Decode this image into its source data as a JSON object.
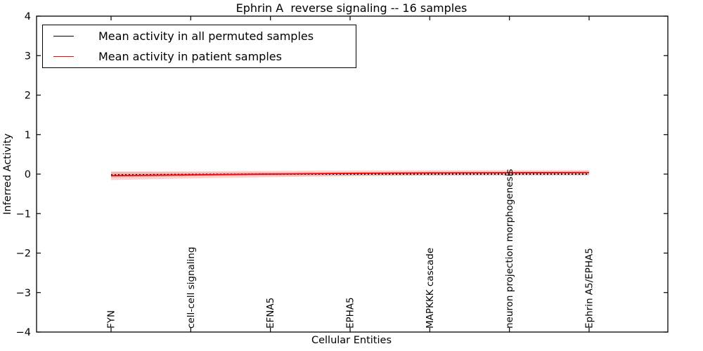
{
  "chart_data": {
    "type": "line",
    "title": "Ephrin A  reverse signaling -- 16 samples",
    "xlabel": "Cellular Entities",
    "ylabel": "Inferred Activity",
    "categories": [
      "FYN",
      "cell-cell signaling",
      "EFNA5",
      "EPHA5",
      "MAPKKK cascade",
      "neuron projection morphogenesis",
      "Ephrin A5/EPHA5"
    ],
    "ylim": [
      -4,
      4
    ],
    "ytick_values": [
      4,
      3,
      2,
      1,
      0,
      -1,
      -2,
      -3,
      -4
    ],
    "ytick_labels": [
      "4",
      "3",
      "2",
      "1",
      "0",
      "−1",
      "−2",
      "−3",
      "−4"
    ],
    "grid": false,
    "legend_position": "upper left",
    "axis_color": "#000000",
    "series": [
      {
        "name": "Mean activity in all permuted samples",
        "color": "#000000",
        "style": "dotted",
        "values": [
          -0.02,
          -0.01,
          0.0,
          0.0,
          0.0,
          0.0,
          0.0
        ],
        "band_halfwidths": [
          0.07,
          0.05,
          0.045,
          0.04,
          0.04,
          0.04,
          0.04
        ],
        "band_color": "rgba(0,0,0,0.13)"
      },
      {
        "name": "Mean activity in patient samples",
        "color": "#ff0000",
        "style": "solid",
        "values": [
          -0.04,
          -0.02,
          0.0,
          0.02,
          0.03,
          0.035,
          0.04
        ],
        "band_halfwidths": [
          0.11,
          0.09,
          0.08,
          0.07,
          0.065,
          0.06,
          0.06
        ],
        "band_color": "rgba(255,0,0,0.18)"
      }
    ]
  }
}
